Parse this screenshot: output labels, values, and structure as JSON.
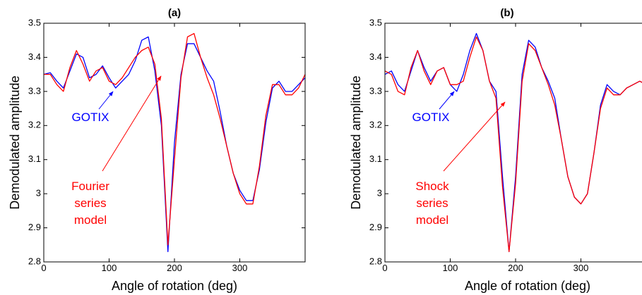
{
  "chart_data": [
    {
      "type": "line",
      "title": "(a)",
      "x_label": "Angle of rotation (deg)",
      "y_label": "Demodulated amplitude",
      "x": [
        0,
        10,
        20,
        30,
        40,
        50,
        60,
        70,
        80,
        90,
        100,
        110,
        120,
        130,
        140,
        150,
        160,
        170,
        180,
        190,
        200,
        210,
        220,
        230,
        240,
        250,
        260,
        270,
        280,
        290,
        300,
        310,
        320,
        330,
        340,
        350,
        360,
        370,
        380,
        390,
        400
      ],
      "series": [
        {
          "name": "GOTIX",
          "color": "#0000ff",
          "values": [
            3.35,
            3.355,
            3.33,
            3.31,
            3.36,
            3.41,
            3.4,
            3.34,
            3.35,
            3.375,
            3.34,
            3.31,
            3.33,
            3.35,
            3.39,
            3.45,
            3.46,
            3.36,
            3.2,
            2.83,
            3.15,
            3.35,
            3.44,
            3.44,
            3.4,
            3.36,
            3.33,
            3.24,
            3.14,
            3.06,
            3.01,
            2.98,
            2.98,
            3.07,
            3.21,
            3.31,
            3.33,
            3.3,
            3.3,
            3.32,
            3.34
          ]
        },
        {
          "name": "Fourier series model",
          "color": "#ff0000",
          "values": [
            3.35,
            3.35,
            3.32,
            3.3,
            3.37,
            3.42,
            3.38,
            3.33,
            3.36,
            3.37,
            3.33,
            3.32,
            3.34,
            3.37,
            3.4,
            3.42,
            3.43,
            3.38,
            3.22,
            2.85,
            3.1,
            3.34,
            3.46,
            3.47,
            3.4,
            3.34,
            3.29,
            3.22,
            3.14,
            3.06,
            3.0,
            2.97,
            2.97,
            3.08,
            3.23,
            3.32,
            3.32,
            3.29,
            3.29,
            3.31,
            3.35
          ]
        }
      ],
      "annotations": [
        {
          "lines": [
            "GOTIX"
          ],
          "color": "#0000ff"
        },
        {
          "lines": [
            "Fourier",
            "series",
            "model"
          ],
          "color": "#ff0000"
        }
      ],
      "xlim": [
        0,
        400
      ],
      "ylim": [
        2.8,
        3.5
      ],
      "xticks": [
        0,
        100,
        200,
        300
      ],
      "yticks": [
        2.8,
        2.9,
        3,
        3.1,
        3.2,
        3.3,
        3.4,
        3.5
      ],
      "grid": false
    },
    {
      "type": "line",
      "title": "(b)",
      "x_label": "Angle of rotation (deg)",
      "y_label": "Demodulated amplitude",
      "x": [
        0,
        10,
        20,
        30,
        40,
        50,
        60,
        70,
        80,
        90,
        100,
        110,
        120,
        130,
        140,
        150,
        160,
        170,
        180,
        190,
        200,
        210,
        220,
        230,
        240,
        250,
        260,
        270,
        280,
        290,
        300,
        310,
        320,
        330,
        340,
        350,
        360,
        370,
        380,
        390,
        400
      ],
      "series": [
        {
          "name": "GOTIX",
          "color": "#0000ff",
          "values": [
            3.35,
            3.36,
            3.32,
            3.3,
            3.36,
            3.42,
            3.37,
            3.33,
            3.36,
            3.37,
            3.32,
            3.3,
            3.35,
            3.42,
            3.47,
            3.42,
            3.33,
            3.3,
            3.05,
            2.83,
            3.05,
            3.35,
            3.45,
            3.43,
            3.37,
            3.33,
            3.28,
            3.16,
            3.05,
            2.99,
            2.97,
            3.0,
            3.12,
            3.26,
            3.32,
            3.3,
            3.29,
            3.31,
            3.32,
            3.33,
            3.32
          ]
        },
        {
          "name": "Shock series model",
          "color": "#ff0000",
          "values": [
            3.36,
            3.35,
            3.3,
            3.29,
            3.37,
            3.42,
            3.36,
            3.32,
            3.36,
            3.37,
            3.32,
            3.32,
            3.33,
            3.4,
            3.46,
            3.42,
            3.33,
            3.28,
            3.02,
            2.83,
            3.03,
            3.33,
            3.44,
            3.42,
            3.37,
            3.32,
            3.26,
            3.16,
            3.05,
            2.99,
            2.97,
            3.0,
            3.12,
            3.25,
            3.31,
            3.29,
            3.29,
            3.31,
            3.32,
            3.33,
            3.32
          ]
        }
      ],
      "annotations": [
        {
          "lines": [
            "GOTIX"
          ],
          "color": "#0000ff"
        },
        {
          "lines": [
            "Shock",
            "series",
            "model"
          ],
          "color": "#ff0000"
        }
      ],
      "xlim": [
        0,
        400
      ],
      "ylim": [
        2.8,
        3.5
      ],
      "xticks": [
        0,
        100,
        200,
        300
      ],
      "yticks": [
        2.8,
        2.9,
        3,
        3.1,
        3.2,
        3.3,
        3.4,
        3.5
      ],
      "grid": false
    }
  ]
}
